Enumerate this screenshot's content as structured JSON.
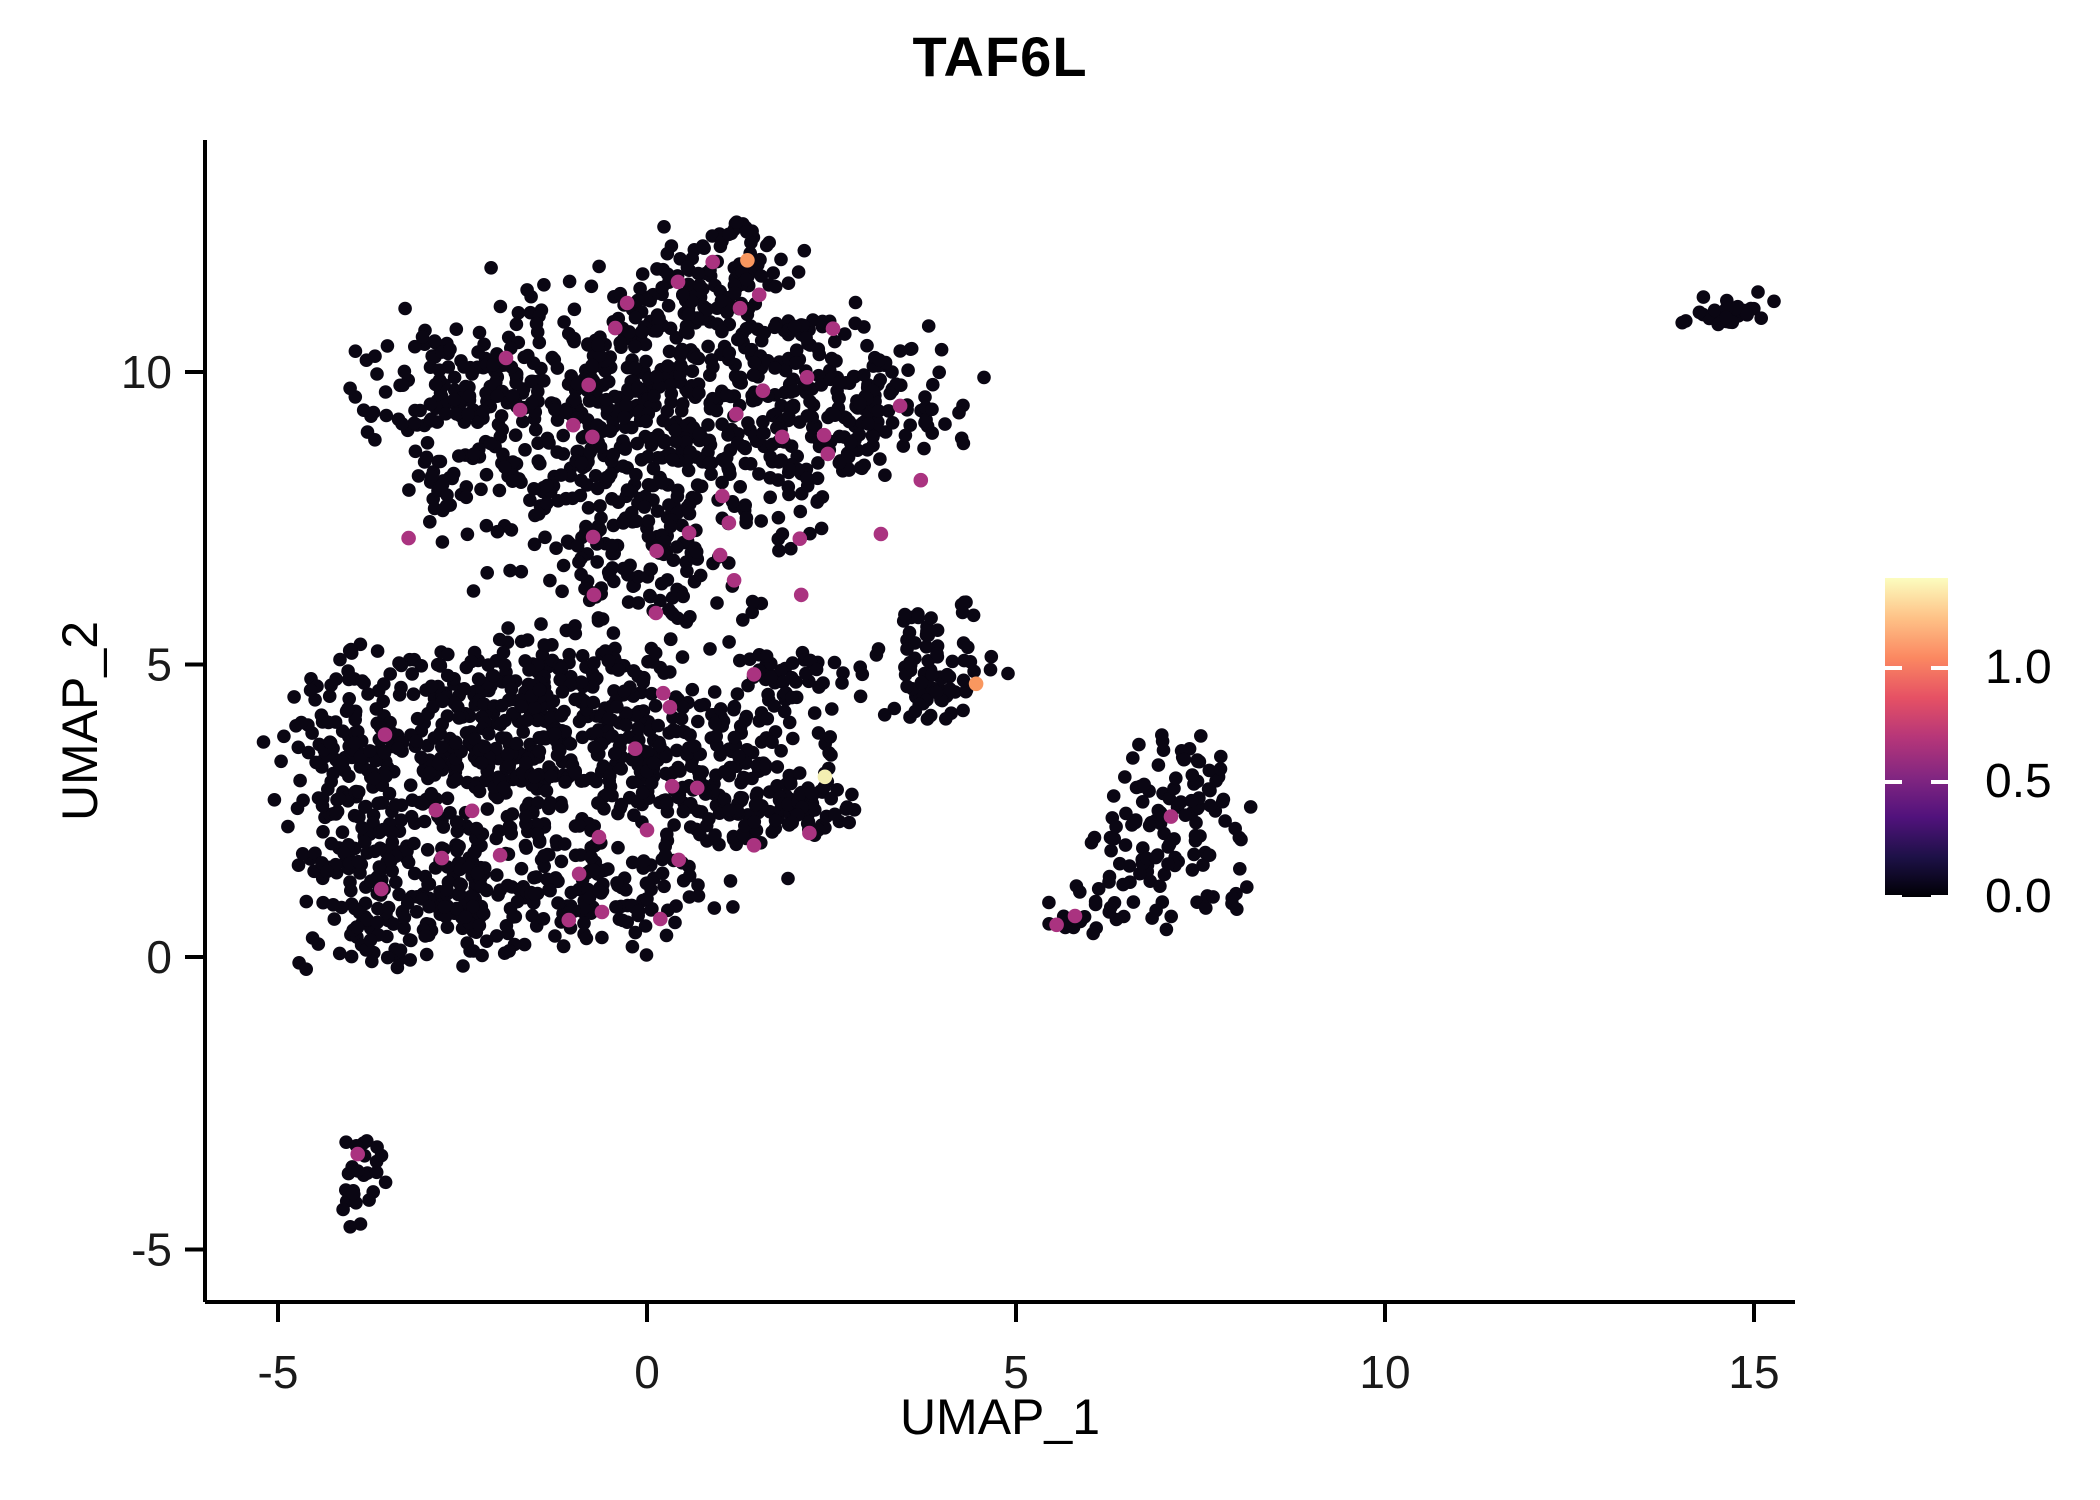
{
  "chart": {
    "title": "TAF6L",
    "xlabel": "UMAP_1",
    "ylabel": "UMAP_2"
  },
  "axes": {
    "x_ticks": [
      {
        "v": -5,
        "label": "-5"
      },
      {
        "v": 0,
        "label": "0"
      },
      {
        "v": 5,
        "label": "5"
      },
      {
        "v": 10,
        "label": "10"
      },
      {
        "v": 15,
        "label": "15"
      }
    ],
    "y_ticks": [
      {
        "v": -5,
        "label": "-5"
      },
      {
        "v": 0,
        "label": "0"
      },
      {
        "v": 5,
        "label": "5"
      },
      {
        "v": 10,
        "label": "10"
      }
    ],
    "xlim": [
      -6.0,
      15.6
    ],
    "ylim": [
      -5.9,
      14.0
    ]
  },
  "legend": {
    "vmax": 1.393,
    "ticks": [
      {
        "v": 1.0,
        "label": "1.0"
      },
      {
        "v": 0.5,
        "label": "0.5"
      },
      {
        "v": 0.0,
        "label": "0.0"
      }
    ],
    "gradient": [
      {
        "at": 0.0,
        "color": "#000004"
      },
      {
        "at": 0.125,
        "color": "#1D1147"
      },
      {
        "at": 0.25,
        "color": "#51127C"
      },
      {
        "at": 0.375,
        "color": "#822681"
      },
      {
        "at": 0.5,
        "color": "#B63679"
      },
      {
        "at": 0.625,
        "color": "#E65164"
      },
      {
        "at": 0.75,
        "color": "#FB8861"
      },
      {
        "at": 0.875,
        "color": "#FEC287"
      },
      {
        "at": 1.0,
        "color": "#FCFDBF"
      }
    ]
  },
  "chart_data": {
    "type": "scatter",
    "title": "TAF6L",
    "xlabel": "UMAP_1",
    "ylabel": "UMAP_2",
    "grid": false,
    "legend_position": "right",
    "point_radius_px": 6.8,
    "colors": {
      "zero": "#0A0613",
      "mid": "#AA3380",
      "high": "#F9975F",
      "top": "#F4EFB2"
    },
    "clusters": [
      {
        "name": "main-upper-blob",
        "components": [
          [
            1.3,
            12.35,
            0.18,
            0.14,
            16
          ],
          [
            0.95,
            11.65,
            0.55,
            0.42,
            60
          ],
          [
            0.2,
            10.65,
            1.25,
            0.55,
            150
          ],
          [
            0.0,
            9.75,
            1.7,
            0.6,
            250
          ],
          [
            -2.55,
            9.85,
            0.55,
            0.5,
            85
          ],
          [
            2.85,
            9.4,
            0.7,
            0.6,
            120
          ],
          [
            0.2,
            8.85,
            1.45,
            0.5,
            150
          ],
          [
            -0.1,
            8.05,
            1.25,
            0.5,
            110
          ],
          [
            -2.7,
            8.05,
            0.4,
            0.4,
            30
          ],
          [
            -0.2,
            7.25,
            1.05,
            0.45,
            70
          ],
          [
            -0.25,
            6.35,
            1.05,
            0.5,
            55
          ],
          [
            0.35,
            5.75,
            0.95,
            0.35,
            22
          ]
        ]
      },
      {
        "name": "main-lower-blob",
        "components": [
          [
            -1.5,
            4.85,
            1.2,
            0.42,
            110
          ],
          [
            -2.3,
            3.7,
            1.25,
            0.8,
            320
          ],
          [
            -4.0,
            2.7,
            0.42,
            1.15,
            130
          ],
          [
            -0.3,
            3.25,
            1.15,
            0.8,
            200
          ],
          [
            1.2,
            2.85,
            0.75,
            0.6,
            120
          ],
          [
            2.0,
            2.55,
            0.42,
            0.33,
            45
          ],
          [
            -2.4,
            1.35,
            1.25,
            0.72,
            210
          ],
          [
            -0.6,
            1.25,
            0.85,
            0.55,
            90
          ],
          [
            -3.05,
            0.5,
            0.75,
            0.28,
            45
          ],
          [
            1.85,
            4.78,
            0.3,
            0.32,
            46
          ],
          [
            2.5,
            4.7,
            0.33,
            0.3,
            10
          ]
        ]
      },
      {
        "name": "small-mid-cluster",
        "components": [
          [
            3.9,
            5.25,
            0.33,
            0.38,
            28
          ],
          [
            4.15,
            4.65,
            0.33,
            0.33,
            30
          ],
          [
            3.62,
            4.55,
            0.28,
            0.28,
            14
          ],
          [
            3.8,
            5.75,
            0.18,
            0.16,
            7
          ]
        ]
      },
      {
        "name": "right-cluster",
        "components": [
          [
            7.15,
            2.5,
            0.52,
            0.52,
            70
          ],
          [
            7.4,
            3.35,
            0.33,
            0.28,
            20
          ],
          [
            5.72,
            0.62,
            0.24,
            0.17,
            12
          ],
          [
            6.15,
            0.95,
            0.24,
            0.2,
            12
          ],
          [
            6.55,
            1.45,
            0.25,
            0.25,
            10
          ],
          [
            7.6,
            0.88,
            0.33,
            0.17,
            14
          ],
          [
            6.6,
            1.95,
            0.33,
            0.28,
            12
          ]
        ]
      },
      {
        "name": "far-right-cluster",
        "components": [
          [
            14.55,
            11.05,
            0.34,
            0.15,
            30
          ]
        ]
      },
      {
        "name": "bottom-left-cluster",
        "components": [
          [
            -3.72,
            -3.28,
            0.15,
            0.22,
            8
          ],
          [
            -3.82,
            -3.85,
            0.18,
            0.28,
            10
          ],
          [
            -3.95,
            -4.3,
            0.16,
            0.18,
            8
          ]
        ]
      }
    ],
    "expressing_points": [
      {
        "x": 0.89,
        "y": 11.88,
        "c": "mid"
      },
      {
        "x": 0.42,
        "y": 11.54,
        "c": "mid"
      },
      {
        "x": -0.27,
        "y": 11.18,
        "c": "mid"
      },
      {
        "x": 1.52,
        "y": 11.32,
        "c": "mid"
      },
      {
        "x": 1.26,
        "y": 11.09,
        "c": "mid"
      },
      {
        "x": -0.43,
        "y": 10.75,
        "c": "mid"
      },
      {
        "x": 2.52,
        "y": 10.74,
        "c": "mid"
      },
      {
        "x": -1.91,
        "y": 10.24,
        "c": "mid"
      },
      {
        "x": -0.79,
        "y": 9.78,
        "c": "mid"
      },
      {
        "x": 2.17,
        "y": 9.91,
        "c": "mid"
      },
      {
        "x": -1.72,
        "y": 9.35,
        "c": "mid"
      },
      {
        "x": 1.57,
        "y": 9.68,
        "c": "mid"
      },
      {
        "x": -1.0,
        "y": 9.09,
        "c": "mid"
      },
      {
        "x": -0.74,
        "y": 8.89,
        "c": "mid"
      },
      {
        "x": 1.21,
        "y": 9.28,
        "c": "mid"
      },
      {
        "x": 1.83,
        "y": 8.89,
        "c": "mid"
      },
      {
        "x": 2.4,
        "y": 8.92,
        "c": "mid"
      },
      {
        "x": 2.45,
        "y": 8.6,
        "c": "mid"
      },
      {
        "x": 3.43,
        "y": 9.42,
        "c": "mid"
      },
      {
        "x": 3.71,
        "y": 8.15,
        "c": "mid"
      },
      {
        "x": 3.17,
        "y": 7.23,
        "c": "mid"
      },
      {
        "x": -3.23,
        "y": 7.16,
        "c": "mid"
      },
      {
        "x": 1.02,
        "y": 7.88,
        "c": "mid"
      },
      {
        "x": 0.99,
        "y": 6.87,
        "c": "mid"
      },
      {
        "x": -0.72,
        "y": 6.19,
        "c": "mid"
      },
      {
        "x": 0.12,
        "y": 5.88,
        "c": "mid"
      },
      {
        "x": 1.18,
        "y": 6.44,
        "c": "mid"
      },
      {
        "x": 2.09,
        "y": 6.19,
        "c": "mid"
      },
      {
        "x": 0.57,
        "y": 7.25,
        "c": "mid"
      },
      {
        "x": 1.11,
        "y": 7.42,
        "c": "mid"
      },
      {
        "x": 2.07,
        "y": 7.15,
        "c": "mid"
      },
      {
        "x": -0.73,
        "y": 7.18,
        "c": "mid"
      },
      {
        "x": 0.13,
        "y": 6.94,
        "c": "mid"
      },
      {
        "x": 1.45,
        "y": 4.83,
        "c": "mid"
      },
      {
        "x": 0.22,
        "y": 4.51,
        "c": "mid"
      },
      {
        "x": 0.31,
        "y": 4.27,
        "c": "mid"
      },
      {
        "x": -3.55,
        "y": 3.8,
        "c": "mid"
      },
      {
        "x": -0.16,
        "y": 3.56,
        "c": "mid"
      },
      {
        "x": 0.34,
        "y": 2.92,
        "c": "mid"
      },
      {
        "x": 0.68,
        "y": 2.89,
        "c": "mid"
      },
      {
        "x": -2.86,
        "y": 2.51,
        "c": "mid"
      },
      {
        "x": -2.37,
        "y": 2.5,
        "c": "mid"
      },
      {
        "x": 0.0,
        "y": 2.17,
        "c": "mid"
      },
      {
        "x": -0.65,
        "y": 2.05,
        "c": "mid"
      },
      {
        "x": 1.45,
        "y": 1.91,
        "c": "mid"
      },
      {
        "x": 2.2,
        "y": 2.12,
        "c": "mid"
      },
      {
        "x": 0.43,
        "y": 1.66,
        "c": "mid"
      },
      {
        "x": -2.78,
        "y": 1.69,
        "c": "mid"
      },
      {
        "x": -1.99,
        "y": 1.74,
        "c": "mid"
      },
      {
        "x": -0.92,
        "y": 1.42,
        "c": "mid"
      },
      {
        "x": -3.6,
        "y": 1.16,
        "c": "mid"
      },
      {
        "x": -0.61,
        "y": 0.77,
        "c": "mid"
      },
      {
        "x": -1.06,
        "y": 0.63,
        "c": "mid"
      },
      {
        "x": 0.18,
        "y": 0.65,
        "c": "mid"
      },
      {
        "x": 5.55,
        "y": 0.55,
        "c": "mid"
      },
      {
        "x": 5.8,
        "y": 0.7,
        "c": "mid"
      },
      {
        "x": 7.1,
        "y": 2.4,
        "c": "mid"
      },
      {
        "x": -3.92,
        "y": -3.37,
        "c": "mid"
      },
      {
        "x": 1.36,
        "y": 11.91,
        "c": "high"
      },
      {
        "x": 4.46,
        "y": 4.67,
        "c": "high"
      },
      {
        "x": 2.41,
        "y": 3.08,
        "c": "top"
      }
    ]
  }
}
